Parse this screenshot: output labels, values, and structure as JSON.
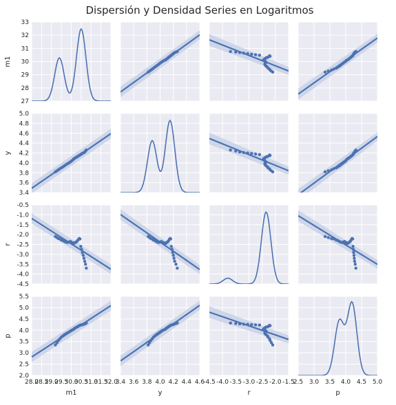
{
  "chart_data": {
    "type": "pairplot",
    "title": "Dispersión y Densidad Series en Logaritmos",
    "variables": [
      "m1",
      "y",
      "r",
      "p"
    ],
    "diag_kind": "kde",
    "offdiag_kind": "scatter with regression line and confidence band",
    "grid": true,
    "colors": {
      "series": "#4c72b0",
      "panel_bg": "#eaeaf2",
      "grid": "#ffffff",
      "band": "#c5d0e6"
    },
    "axes": {
      "m1": {
        "range": [
          27,
          33
        ],
        "ticks": [
          27,
          28,
          29,
          30,
          31,
          32,
          33
        ],
        "bottom_range": [
          28,
          32
        ],
        "bottom_ticks": [
          "28.0",
          "28.5",
          "29.0",
          "29.5",
          "30.0",
          "30.5",
          "31.0",
          "31.5",
          "32.0"
        ]
      },
      "y": {
        "range": [
          3.4,
          5.0
        ],
        "ticks": [
          "3.4",
          "3.6",
          "3.8",
          "4.0",
          "4.2",
          "4.4",
          "4.6",
          "4.8",
          "5.0"
        ],
        "bottom_range": [
          3.4,
          4.6
        ],
        "bottom_ticks": [
          "3.4",
          "3.6",
          "3.8",
          "4.0",
          "4.2",
          "4.4",
          "4.6"
        ]
      },
      "r": {
        "range": [
          -4.5,
          -0.5
        ],
        "ticks": [
          "-4.5",
          "-4.0",
          "-3.5",
          "-3.0",
          "-2.5",
          "-2.0",
          "-1.5",
          "-1.0",
          "-0.5"
        ],
        "bottom_range": [
          -4.5,
          -1.5
        ],
        "bottom_ticks": [
          "-4.5",
          "-4.0",
          "-3.5",
          "-3.0",
          "-2.5",
          "-2.0",
          "-1.5"
        ]
      },
      "p": {
        "range": [
          2.0,
          5.5
        ],
        "ticks": [
          "2.0",
          "2.5",
          "3.0",
          "3.5",
          "4.0",
          "4.5",
          "5.0",
          "5.5"
        ],
        "bottom_range": [
          2.5,
          5.0
        ],
        "bottom_ticks": [
          "2.5",
          "3.0",
          "3.5",
          "4.0",
          "4.5",
          "5.0"
        ]
      }
    },
    "scatter_points": {
      "m1": [
        29.2,
        29.28,
        29.35,
        29.42,
        29.5,
        29.58,
        29.65,
        29.72,
        29.8,
        29.88,
        29.95,
        30.02,
        30.08,
        30.12,
        30.16,
        30.2,
        30.24,
        30.28,
        30.32,
        30.36,
        30.4,
        30.44,
        30.48,
        30.52,
        30.56,
        30.6,
        30.64,
        30.68,
        30.72,
        30.76
      ],
      "y": [
        3.82,
        3.84,
        3.86,
        3.88,
        3.9,
        3.92,
        3.94,
        3.96,
        3.98,
        4.0,
        4.02,
        4.04,
        4.06,
        4.08,
        4.09,
        4.1,
        4.11,
        4.12,
        4.13,
        4.14,
        4.15,
        4.16,
        4.17,
        4.18,
        4.19,
        4.2,
        4.21,
        4.22,
        4.24,
        4.26
      ],
      "r": [
        -2.1,
        -2.15,
        -2.2,
        -2.22,
        -2.28,
        -2.3,
        -2.35,
        -2.38,
        -2.4,
        -2.38,
        -2.35,
        -2.4,
        -2.42,
        -2.45,
        -2.42,
        -2.4,
        -2.38,
        -2.35,
        -2.3,
        -2.25,
        -2.2,
        -2.22,
        -2.6,
        -2.75,
        -2.9,
        -3.05,
        -3.2,
        -3.35,
        -3.5,
        -3.7
      ],
      "p": [
        3.35,
        3.45,
        3.55,
        3.62,
        3.7,
        3.75,
        3.8,
        3.84,
        3.88,
        3.92,
        3.96,
        4.0,
        4.02,
        4.05,
        4.08,
        4.1,
        4.12,
        4.14,
        4.16,
        4.18,
        4.2,
        4.22,
        4.23,
        4.24,
        4.25,
        4.26,
        4.27,
        4.28,
        4.3,
        4.32
      ]
    },
    "regression": {
      "m1_y": [
        29.2,
        3.82,
        30.76,
        4.26
      ],
      "comment_na": ""
    },
    "kde_peaks": {
      "m1": {
        "peaks": [
          [
            29.4,
            0.6
          ],
          [
            30.5,
            1.0
          ]
        ]
      },
      "y": {
        "peaks": [
          [
            3.88,
            0.72
          ],
          [
            4.15,
            1.0
          ]
        ]
      },
      "r": {
        "peaks": [
          [
            -3.8,
            0.08
          ],
          [
            -2.35,
            1.0
          ]
        ]
      },
      "p": {
        "peaks": [
          [
            3.8,
            0.75
          ],
          [
            4.2,
            1.0
          ]
        ]
      }
    }
  }
}
